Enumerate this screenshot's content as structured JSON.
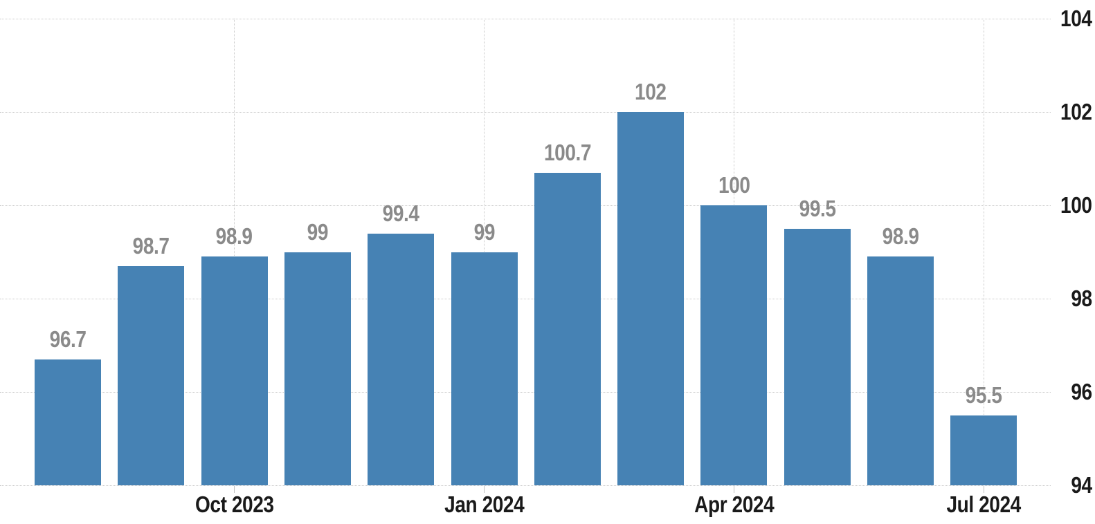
{
  "chart_data": {
    "type": "bar",
    "values": [
      96.7,
      98.7,
      98.9,
      99,
      99.4,
      99,
      100.7,
      102,
      100,
      99.5,
      98.9,
      95.5
    ],
    "bar_value_labels": [
      "96.7",
      "98.7",
      "98.9",
      "99",
      "99.4",
      "99",
      "100.7",
      "102",
      "100",
      "99.5",
      "98.9",
      "95.5"
    ],
    "x_axis_ticks": [
      {
        "bar_index": 2,
        "label": "Oct 2023"
      },
      {
        "bar_index": 5,
        "label": "Jan 2024"
      },
      {
        "bar_index": 8,
        "label": "Apr 2024"
      },
      {
        "bar_index": 11,
        "label": "Jul 2024"
      }
    ],
    "y_axis_ticks": [
      "94",
      "96",
      "98",
      "100",
      "102",
      "104"
    ],
    "ylim": [
      94,
      104
    ],
    "y_axis_side": "right",
    "grid": "dotted",
    "legend": "none"
  },
  "style": {
    "bar_color": "#4682B4",
    "value_label_color": "#8A8A8A",
    "axis_label_color": "#1A1A1A",
    "grid_color": "#C9C9C9",
    "tick_color": "#C0C0C0",
    "background_color": "#FFFFFF"
  }
}
